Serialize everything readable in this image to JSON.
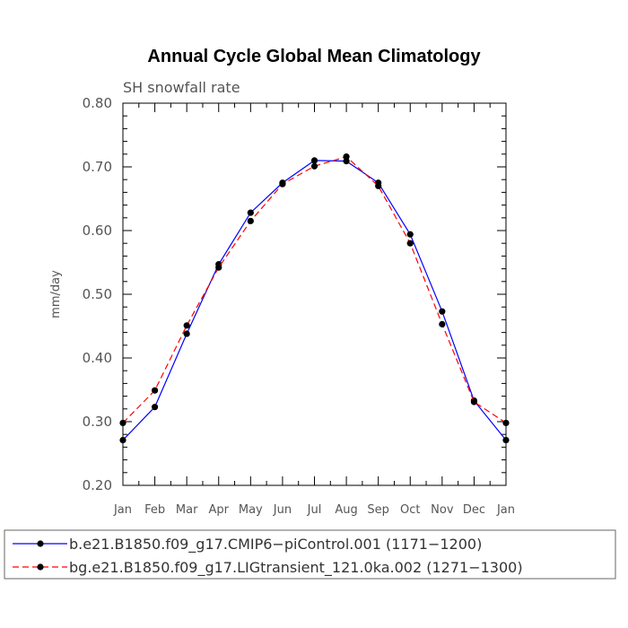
{
  "chart_data": {
    "type": "line",
    "title": "Annual Cycle Global Mean Climatology",
    "subtitle": "SH snowfall rate",
    "ylabel": "mm/day",
    "xlabel": "",
    "categories": [
      "Jan",
      "Feb",
      "Mar",
      "Apr",
      "May",
      "Jun",
      "Jul",
      "Aug",
      "Sep",
      "Oct",
      "Nov",
      "Dec",
      "Jan"
    ],
    "ylim": [
      0.2,
      0.8
    ],
    "yticks": [
      0.2,
      0.3,
      0.4,
      0.5,
      0.6,
      0.7,
      0.8
    ],
    "ytick_labels": [
      "0.20",
      "0.30",
      "0.40",
      "0.50",
      "0.60",
      "0.70",
      "0.80"
    ],
    "series": [
      {
        "name": "b.e21.B1850.f09_g17.CMIP6−piControl.001 (1171−1200)",
        "color": "#0000ff",
        "dash": "solid",
        "values": [
          0.271,
          0.323,
          0.438,
          0.547,
          0.628,
          0.675,
          0.71,
          0.709,
          0.675,
          0.594,
          0.473,
          0.333,
          0.271
        ]
      },
      {
        "name": "bg.e21.B1850.f09_g17.LIGtransient_121.0ka.002 (1271−1300)",
        "color": "#ff0000",
        "dash": "dashed",
        "values": [
          0.298,
          0.349,
          0.451,
          0.542,
          0.615,
          0.673,
          0.701,
          0.716,
          0.67,
          0.58,
          0.453,
          0.331,
          0.298
        ]
      }
    ],
    "grid": false,
    "legend_position": "bottom"
  }
}
